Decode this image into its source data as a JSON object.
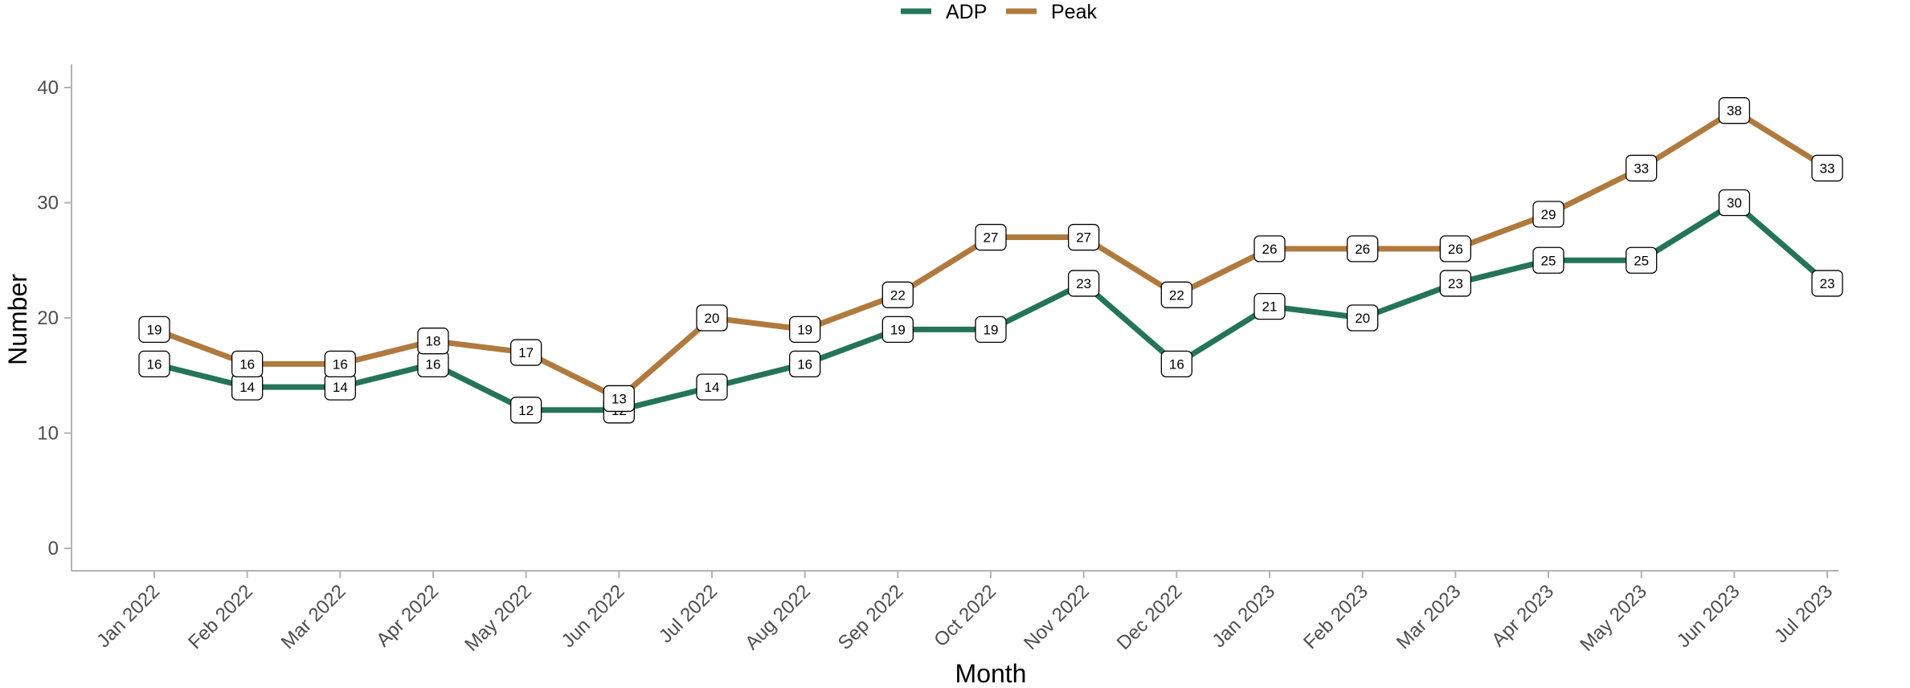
{
  "chart_data": {
    "type": "line",
    "title": "",
    "xlabel": "Month",
    "ylabel": "Number",
    "ylim": [
      0,
      40
    ],
    "yticks": [
      0,
      10,
      20,
      30,
      40
    ],
    "categories": [
      "Jan 2022",
      "Feb 2022",
      "Mar 2022",
      "Apr 2022",
      "May 2022",
      "Jun 2022",
      "Jul 2022",
      "Aug 2022",
      "Sep 2022",
      "Oct 2022",
      "Nov 2022",
      "Dec 2022",
      "Jan 2023",
      "Feb 2023",
      "Mar 2023",
      "Apr 2023",
      "May 2023",
      "Jun 2023",
      "Jul 2023"
    ],
    "series": [
      {
        "name": "ADP",
        "color": "#24745A",
        "values": [
          16,
          14,
          14,
          16,
          12,
          12,
          14,
          16,
          19,
          19,
          23,
          16,
          21,
          20,
          23,
          25,
          25,
          30,
          23
        ]
      },
      {
        "name": "Peak",
        "color": "#B07A3E",
        "values": [
          19,
          16,
          16,
          18,
          17,
          13,
          20,
          19,
          22,
          27,
          27,
          22,
          26,
          26,
          26,
          29,
          33,
          38,
          33
        ]
      }
    ],
    "legend_position": "top",
    "grid": false,
    "data_labels": true
  }
}
